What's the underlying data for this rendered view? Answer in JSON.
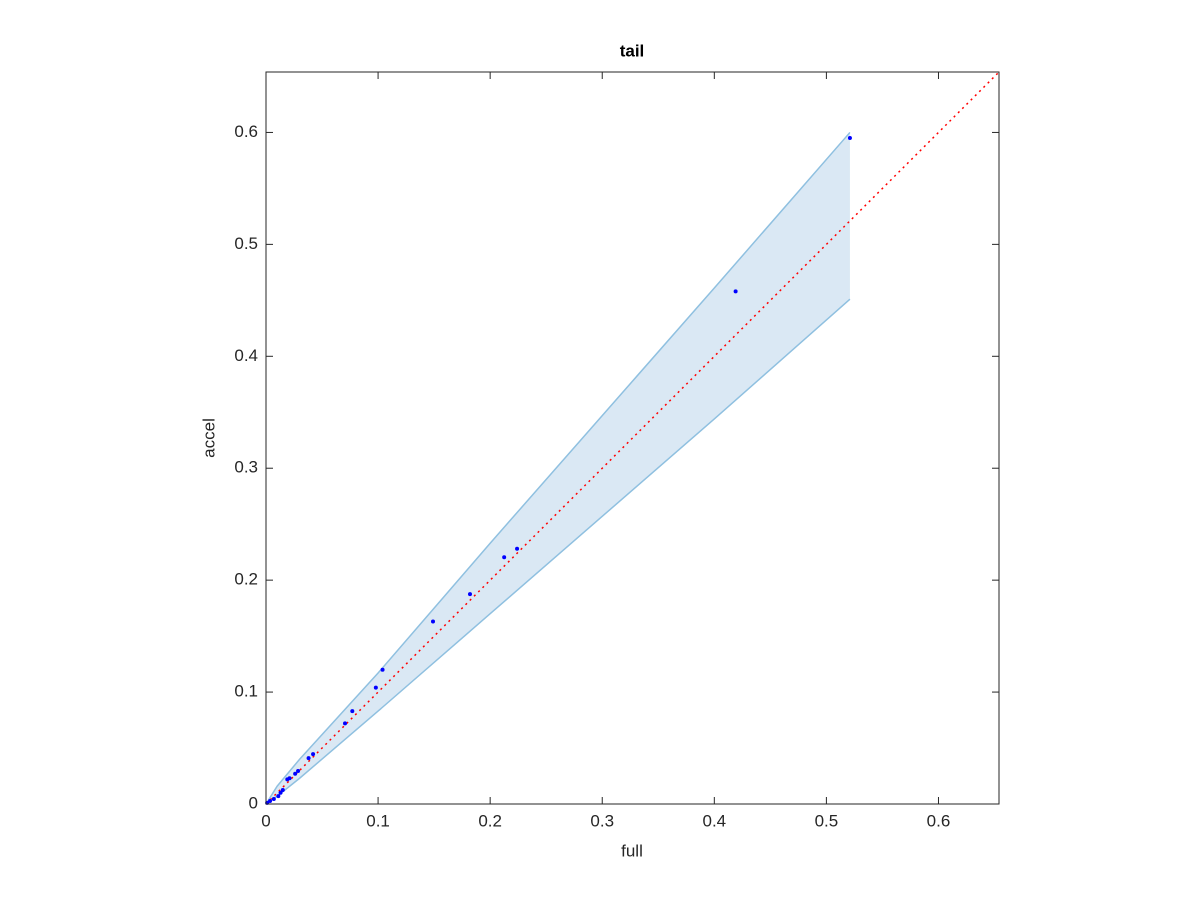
{
  "chart_data": {
    "type": "scatter",
    "title": "tail",
    "xlabel": "full",
    "ylabel": "accel",
    "x": [
      0.521,
      0.419,
      0.224,
      0.2125,
      0.182,
      0.149,
      0.104,
      0.098,
      0.077,
      0.0705,
      0.042,
      0.038,
      0.0286,
      0.026,
      0.021,
      0.019,
      0.015,
      0.013,
      0.011,
      0.007,
      0.0036,
      0.001
    ],
    "series": [
      {
        "color": "#0000ff",
        "values": [
          0.595,
          0.458,
          0.228,
          0.2205,
          0.1875,
          0.163,
          0.12,
          0.104,
          0.083,
          0.072,
          0.0446,
          0.041,
          0.0295,
          0.027,
          0.023,
          0.022,
          0.0125,
          0.01,
          0.007,
          0.0045,
          0.0027,
          0.001
        ]
      }
    ],
    "band": {
      "x": [
        0,
        0.01,
        0.03,
        0.1,
        0.2,
        0.3,
        0.4,
        0.521
      ],
      "upper": [
        0,
        0.016,
        0.04,
        0.117,
        0.233,
        0.347,
        0.461,
        0.6
      ],
      "lower": [
        0,
        0.007,
        0.023,
        0.083,
        0.17,
        0.257,
        0.344,
        0.451
      ],
      "color": "#8fc0e0",
      "fill": "#dae8f4"
    },
    "reference_line": {
      "x": [
        0,
        0.654
      ],
      "y": [
        0,
        0.654
      ],
      "color": "#ff0000"
    },
    "xlim": [
      0,
      0.654
    ],
    "ylim": [
      0,
      0.654
    ],
    "xticks": [
      0,
      0.1,
      0.2,
      0.3,
      0.4,
      0.5,
      0.6
    ],
    "yticks": [
      0,
      0.1,
      0.2,
      0.3,
      0.4,
      0.5,
      0.6
    ]
  }
}
